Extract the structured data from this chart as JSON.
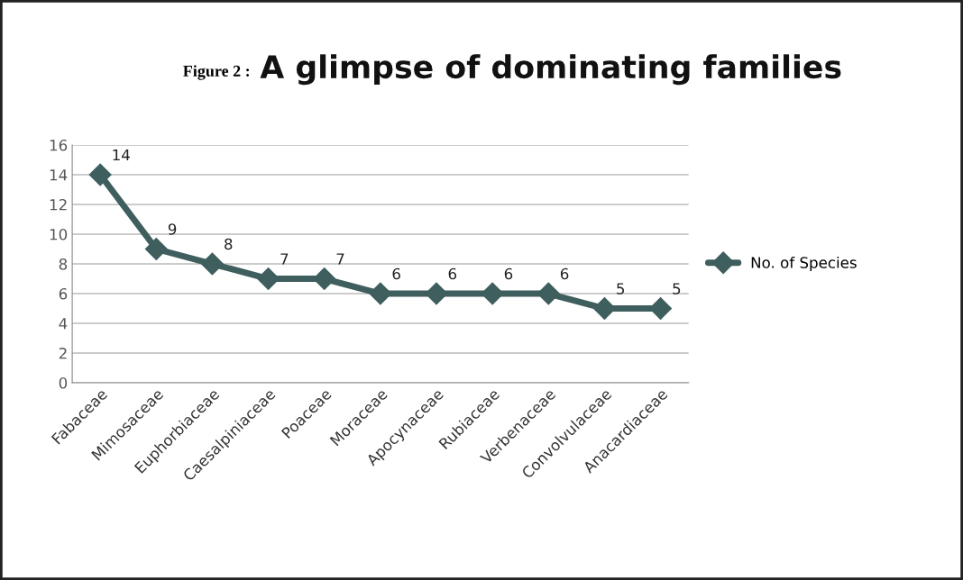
{
  "chart_data": {
    "type": "line",
    "title": "A glimpse of dominating families",
    "annotations": [
      "Figure 2 :"
    ],
    "categories": [
      "Fabaceae",
      "Mimosaceae",
      "Euphorbiaceae",
      "Caesalpiniaceae",
      "Poaceae",
      "Moraceae",
      "Apocynaceae",
      "Rubiaceae",
      "Verbenaceae",
      "Convolvulaceae",
      "Anacardiaceae"
    ],
    "series": [
      {
        "name": "No. of Species",
        "color": "#3f5e5e",
        "values": [
          14,
          9,
          8,
          7,
          7,
          6,
          6,
          6,
          6,
          5,
          5
        ]
      }
    ],
    "ylim": [
      0,
      16
    ],
    "yticks": [
      0,
      2,
      4,
      6,
      8,
      10,
      12,
      14,
      16
    ],
    "grid": "y",
    "legend": "right",
    "marker": "diamond",
    "line_style": "solid",
    "data_labels": true
  }
}
